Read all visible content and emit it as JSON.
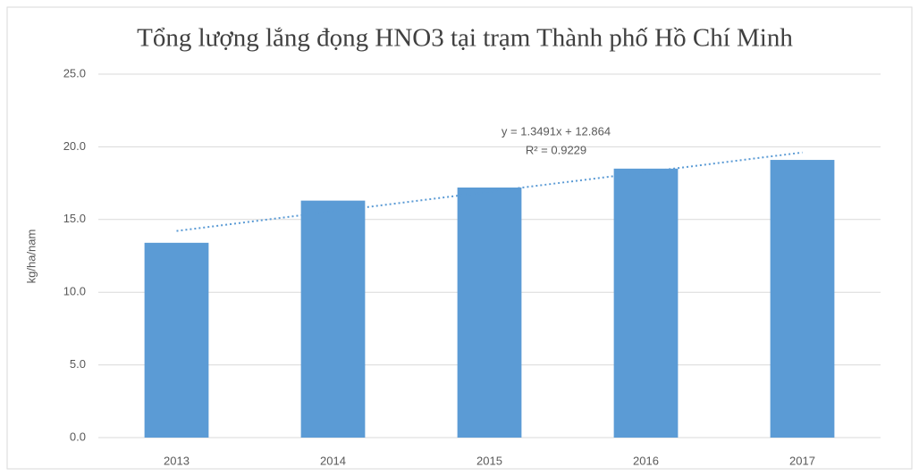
{
  "chart_data": {
    "type": "bar",
    "title": "Tổng lượng lắng đọng HNO3 tại trạm Thành phố Hồ Chí Minh",
    "y_label": "kg/ha/nam",
    "categories": [
      "2013",
      "2014",
      "2015",
      "2016",
      "2017"
    ],
    "values": [
      13.4,
      16.3,
      17.2,
      18.5,
      19.1
    ],
    "color": "#5b9bd5",
    "ylim": [
      0,
      25
    ],
    "yticks": [
      {
        "value": 0,
        "label": "0.0"
      },
      {
        "value": 5,
        "label": "5.0"
      },
      {
        "value": 10,
        "label": "10.0"
      },
      {
        "value": 15,
        "label": "15.0"
      },
      {
        "value": 20,
        "label": "20.0"
      },
      {
        "value": 25,
        "label": "25.0"
      }
    ],
    "grid": true,
    "trendline": {
      "slope": 1.3491,
      "intercept": 12.864,
      "equation": "y = 1.3491x + 12.864",
      "r2": "R² = 0.9229"
    }
  }
}
